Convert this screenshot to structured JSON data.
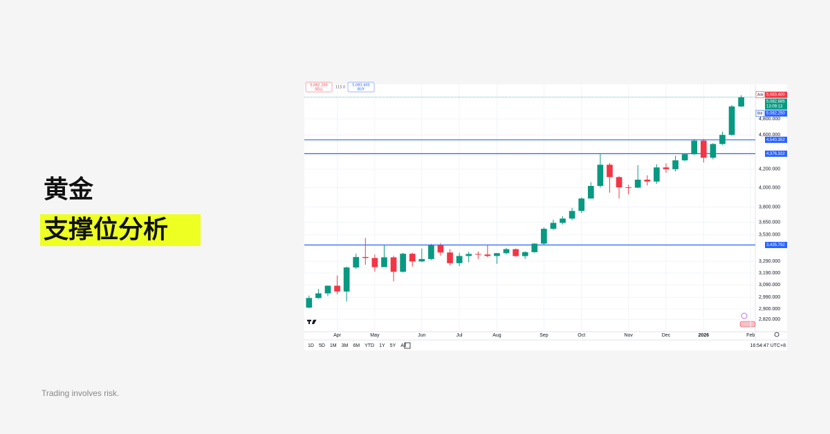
{
  "headline": {
    "title": "黄金",
    "subtitle": "支撑位分析"
  },
  "footer": "Trading involves risk.",
  "toolbar": {
    "sell_price": "5,082.250",
    "sell": "SELL",
    "spread": "115.0",
    "buy_price": "5,083.400",
    "buy": "BUY"
  },
  "ranges": [
    "1D",
    "5D",
    "1M",
    "3M",
    "6M",
    "YTD",
    "1Y",
    "5Y",
    "All"
  ],
  "clock": "16:54:47 UTC+8",
  "chart_data": {
    "type": "candlestick",
    "log_scale": true,
    "grid": true,
    "up_color": "#089981",
    "down_color": "#f23645",
    "categories": [
      null,
      null,
      null,
      "Apr",
      null,
      null,
      null,
      "May",
      null,
      null,
      null,
      null,
      "Jun",
      null,
      null,
      null,
      "Jul",
      null,
      null,
      null,
      "Aug",
      null,
      null,
      null,
      null,
      "Sep",
      null,
      null,
      null,
      "Oct",
      null,
      null,
      null,
      null,
      "Nov",
      null,
      null,
      null,
      "Dec",
      null,
      null,
      null,
      "2026",
      null,
      null,
      null,
      null,
      "Feb"
    ],
    "open": [
      2910,
      2985,
      3022,
      3084,
      3037,
      3237,
      3328,
      3319,
      3240,
      3325,
      3200,
      3357,
      3289,
      3310,
      3432,
      3368,
      3274,
      3337,
      3355,
      3350,
      3337,
      3362,
      3398,
      3336,
      3371,
      3448,
      3586,
      3643,
      3685,
      3760,
      3886,
      4018,
      4250,
      4113,
      4003,
      4000,
      4085,
      4065,
      4220,
      4200,
      4300,
      4370,
      4530,
      4330,
      4490,
      4600,
      4960,
      null
    ],
    "high": [
      3005,
      3057,
      3085,
      3168,
      3245,
      3358,
      3500,
      3350,
      3435,
      3340,
      3365,
      3367,
      3403,
      3446,
      3452,
      3398,
      3365,
      3375,
      3377,
      3438,
      3363,
      3409,
      3404,
      3379,
      3453,
      3600,
      3675,
      3707,
      3791,
      3897,
      4059,
      4381,
      4270,
      4125,
      4030,
      4245,
      4133,
      4256,
      4265,
      4353,
      4375,
      4550,
      4550,
      4500,
      4640,
      4980,
      5110,
      null
    ],
    "low": [
      2905,
      2980,
      3000,
      3015,
      2957,
      3225,
      3260,
      3202,
      3240,
      3120,
      3195,
      3245,
      3285,
      3300,
      3340,
      3255,
      3248,
      3282,
      3310,
      3325,
      3268,
      3350,
      3330,
      3311,
      3366,
      3436,
      3575,
      3628,
      3670,
      3740,
      3884,
      4000,
      3947,
      3886,
      3930,
      3995,
      4022,
      4040,
      4160,
      4175,
      4290,
      4360,
      4275,
      4310,
      4480,
      4590,
      4950,
      null
    ],
    "close": [
      2985,
      3022,
      3084,
      3037,
      3237,
      3328,
      3319,
      3240,
      3325,
      3200,
      3357,
      3289,
      3310,
      3432,
      3368,
      3274,
      3337,
      3355,
      3350,
      3337,
      3362,
      3398,
      3336,
      3371,
      3448,
      3586,
      3643,
      3685,
      3760,
      3886,
      4018,
      4250,
      4113,
      4003,
      4000,
      4085,
      4065,
      4220,
      4200,
      4300,
      4370,
      4530,
      4330,
      4490,
      4600,
      4960,
      5082,
      null
    ],
    "ylim": [
      2730,
      5260
    ],
    "yticks": [
      {
        "value": 2820,
        "label": "2,820.000"
      },
      {
        "value": 2900,
        "label": "2,900.000"
      },
      {
        "value": 2990,
        "label": "2,990.000"
      },
      {
        "value": 3090,
        "label": "3,090.000"
      },
      {
        "value": 3190,
        "label": "3,190.000"
      },
      {
        "value": 3290,
        "label": "3,290.000"
      },
      {
        "value": 3530,
        "label": "3,530.000"
      },
      {
        "value": 3650,
        "label": "3,650.000"
      },
      {
        "value": 3800,
        "label": "3,800.000"
      },
      {
        "value": 4000,
        "label": "4,000.000"
      },
      {
        "value": 4200,
        "label": "4,200.000"
      },
      {
        "value": 4600,
        "label": "4,600.000"
      },
      {
        "value": 4800,
        "label": "4,800.000"
      }
    ],
    "hline_color": "#2962ff",
    "hlines": [
      {
        "value": 4540.352,
        "label": "4,540.352"
      },
      {
        "value": 4376.322,
        "label": "4,376.322"
      },
      {
        "value": 3435.792,
        "label": "3,435.792"
      }
    ],
    "price_tags": [
      {
        "name": "Ask",
        "value": 5083.4,
        "label": "5,083.400",
        "color": "#f23645"
      },
      {
        "value": 5082.885,
        "label": "5,082.885",
        "countdown": "13:09:13",
        "color": "#089981"
      },
      {
        "name": "Bid",
        "value": 5082.25,
        "label": "5,082.250",
        "color": "#2962ff"
      }
    ]
  }
}
